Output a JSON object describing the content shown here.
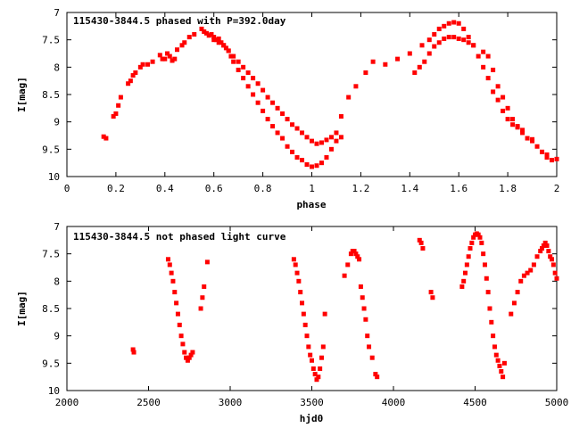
{
  "chart_data": [
    {
      "type": "scatter",
      "title": "115430-3844.5 phased with P=392.0day",
      "xlabel": "phase",
      "ylabel": "I[mag]",
      "xlim": [
        0,
        2
      ],
      "ylim": [
        10,
        7
      ],
      "y_inverted": true,
      "xticks": [
        "0",
        "0.2",
        "0.4",
        "0.6",
        "0.8",
        "1",
        "1.2",
        "1.4",
        "1.6",
        "1.8",
        "2"
      ],
      "yticks": [
        "7",
        "7.5",
        "8",
        "8.5",
        "9",
        "9.5",
        "10"
      ],
      "marker_color": "#ff0000",
      "grid": false,
      "series": [
        {
          "x": [
            0.15,
            0.16,
            0.19,
            0.2,
            0.21,
            0.22,
            0.25,
            0.26,
            0.27,
            0.28,
            0.3,
            0.31,
            0.33,
            0.35,
            0.38,
            0.39,
            0.4,
            0.41,
            0.42,
            0.43,
            0.44,
            0.45,
            0.47,
            0.48,
            0.5,
            0.52,
            0.55,
            0.56,
            0.57,
            0.58,
            0.59,
            0.6,
            0.61,
            0.62,
            0.63,
            0.64,
            0.65,
            0.66,
            0.67,
            0.68,
            0.7,
            0.72,
            0.74,
            0.76,
            0.78,
            0.8,
            0.82,
            0.84,
            0.86,
            0.88,
            0.9,
            0.92,
            0.94,
            0.96,
            0.98,
            1.0,
            1.02,
            1.04,
            1.06,
            1.08,
            1.1,
            1.12,
            1.15,
            1.18,
            1.22,
            1.25,
            1.3,
            1.35,
            1.4,
            1.45,
            1.48,
            1.5,
            1.52,
            1.54,
            1.56,
            1.58,
            1.6,
            1.62,
            1.64,
            1.66,
            1.68,
            1.7,
            1.72,
            1.74,
            1.76,
            1.78,
            1.8,
            1.82,
            1.84,
            1.86,
            1.88,
            1.9,
            1.92,
            1.94,
            1.96,
            1.98,
            2.0,
            0.6,
            0.62,
            0.64,
            0.66,
            0.68,
            0.7,
            0.72,
            0.74,
            0.76,
            0.78,
            0.8,
            0.82,
            0.84,
            0.86,
            0.88,
            0.9,
            0.92,
            0.94,
            0.96,
            0.98,
            1.0,
            1.02,
            1.04,
            1.06,
            1.08,
            1.1,
            1.12,
            1.42,
            1.44,
            1.46,
            1.48,
            1.5,
            1.52,
            1.54,
            1.56,
            1.58,
            1.6,
            1.62,
            1.64,
            1.66,
            1.7,
            1.72,
            1.74,
            1.76,
            1.78,
            1.8,
            1.82,
            1.84,
            1.86,
            1.9,
            1.94,
            1.96
          ],
          "y": [
            9.27,
            9.3,
            8.9,
            8.85,
            8.7,
            8.55,
            8.3,
            8.25,
            8.15,
            8.1,
            8.0,
            7.95,
            7.95,
            7.9,
            7.78,
            7.85,
            7.85,
            7.75,
            7.8,
            7.88,
            7.85,
            7.68,
            7.6,
            7.55,
            7.45,
            7.4,
            7.3,
            7.35,
            7.38,
            7.42,
            7.4,
            7.45,
            7.5,
            7.48,
            7.55,
            7.6,
            7.65,
            7.7,
            7.8,
            7.9,
            8.05,
            8.2,
            8.35,
            8.5,
            8.65,
            8.8,
            8.95,
            9.08,
            9.2,
            9.3,
            9.45,
            9.55,
            9.65,
            9.7,
            9.78,
            9.82,
            9.8,
            9.75,
            9.65,
            9.5,
            9.2,
            8.9,
            8.55,
            8.35,
            8.1,
            7.9,
            7.95,
            7.85,
            7.75,
            7.6,
            7.5,
            7.4,
            7.3,
            7.25,
            7.2,
            7.18,
            7.2,
            7.3,
            7.45,
            7.6,
            7.8,
            8.0,
            8.2,
            8.45,
            8.6,
            8.8,
            8.95,
            9.05,
            9.1,
            9.2,
            9.3,
            9.35,
            9.45,
            9.55,
            9.65,
            9.7,
            9.68,
            7.5,
            7.55,
            7.6,
            7.7,
            7.8,
            7.9,
            8.0,
            8.1,
            8.2,
            8.3,
            8.42,
            8.55,
            8.65,
            8.75,
            8.85,
            8.95,
            9.05,
            9.12,
            9.2,
            9.28,
            9.35,
            9.4,
            9.38,
            9.33,
            9.28,
            9.35,
            9.28,
            8.1,
            8.0,
            7.9,
            7.75,
            7.62,
            7.55,
            7.48,
            7.45,
            7.45,
            7.48,
            7.5,
            7.55,
            7.6,
            7.72,
            7.8,
            8.05,
            8.35,
            8.55,
            8.75,
            8.95,
            9.08,
            9.15,
            9.32,
            9.55,
            9.6
          ]
        }
      ]
    },
    {
      "type": "scatter",
      "title": "115430-3844.5 not phased light curve",
      "xlabel": "hjd0",
      "ylabel": "I[mag]",
      "xlim": [
        2000,
        5000
      ],
      "ylim": [
        10,
        7
      ],
      "y_inverted": true,
      "xticks": [
        "2000",
        "2500",
        "3000",
        "3500",
        "4000",
        "4500",
        "5000"
      ],
      "yticks": [
        "7",
        "7.5",
        "8",
        "8.5",
        "9",
        "9.5",
        "10"
      ],
      "marker_color": "#ff0000",
      "grid": false,
      "series": [
        {
          "x": [
            2405,
            2410,
            2620,
            2630,
            2640,
            2650,
            2660,
            2670,
            2680,
            2690,
            2700,
            2710,
            2720,
            2730,
            2740,
            2750,
            2760,
            2770,
            2820,
            2830,
            2840,
            2860,
            3390,
            3400,
            3410,
            3420,
            3430,
            3440,
            3450,
            3460,
            3470,
            3480,
            3490,
            3500,
            3510,
            3520,
            3530,
            3540,
            3550,
            3560,
            3570,
            3580,
            3700,
            3720,
            3740,
            3750,
            3760,
            3770,
            3780,
            3790,
            3800,
            3810,
            3820,
            3830,
            3840,
            3850,
            3870,
            3890,
            3900,
            4160,
            4170,
            4180,
            4230,
            4240,
            4420,
            4430,
            4440,
            4450,
            4460,
            4470,
            4480,
            4490,
            4500,
            4510,
            4520,
            4530,
            4540,
            4550,
            4560,
            4570,
            4580,
            4590,
            4600,
            4610,
            4620,
            4630,
            4640,
            4650,
            4660,
            4670,
            4680,
            4720,
            4740,
            4760,
            4780,
            4800,
            4820,
            4840,
            4860,
            4880,
            4900,
            4910,
            4920,
            4930,
            4940,
            4950,
            4960,
            4970,
            4980,
            4990,
            5000
          ],
          "y": [
            9.25,
            9.3,
            7.6,
            7.7,
            7.85,
            8.0,
            8.2,
            8.4,
            8.6,
            8.8,
            9.0,
            9.15,
            9.3,
            9.4,
            9.45,
            9.4,
            9.35,
            9.3,
            8.5,
            8.3,
            8.1,
            7.65,
            7.6,
            7.7,
            7.85,
            8.0,
            8.2,
            8.4,
            8.6,
            8.8,
            9.0,
            9.2,
            9.35,
            9.45,
            9.6,
            9.7,
            9.8,
            9.75,
            9.6,
            9.4,
            9.2,
            8.6,
            7.9,
            7.7,
            7.5,
            7.45,
            7.45,
            7.5,
            7.55,
            7.6,
            8.1,
            8.3,
            8.5,
            8.7,
            9.0,
            9.2,
            9.4,
            9.7,
            9.75,
            7.25,
            7.3,
            7.4,
            8.2,
            8.3,
            8.1,
            8.0,
            7.85,
            7.7,
            7.55,
            7.4,
            7.3,
            7.2,
            7.15,
            7.13,
            7.15,
            7.2,
            7.3,
            7.5,
            7.7,
            7.95,
            8.2,
            8.5,
            8.75,
            9.0,
            9.2,
            9.35,
            9.45,
            9.55,
            9.65,
            9.75,
            9.5,
            8.6,
            8.4,
            8.2,
            8.0,
            7.9,
            7.85,
            7.8,
            7.7,
            7.55,
            7.45,
            7.4,
            7.35,
            7.3,
            7.35,
            7.45,
            7.55,
            7.6,
            7.7,
            7.85,
            7.95
          ]
        }
      ]
    }
  ]
}
